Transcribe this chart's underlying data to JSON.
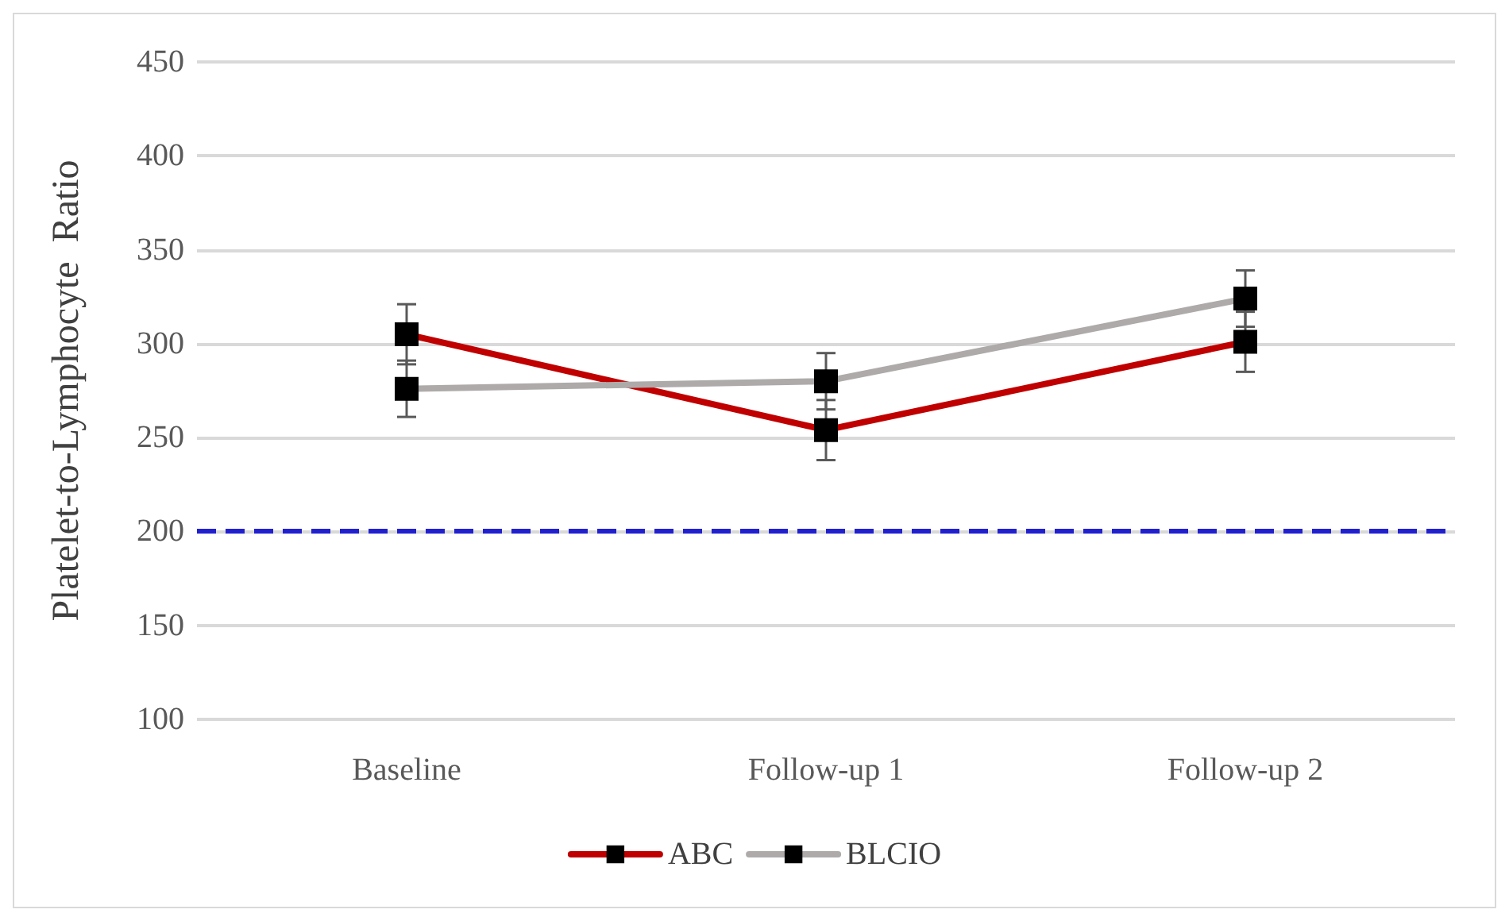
{
  "chart_data": {
    "type": "line",
    "ylabel": "Platelet-to-Lymphocyte  Ratio",
    "categories": [
      "Baseline",
      "Follow-up 1",
      "Follow-up 2"
    ],
    "series": [
      {
        "name": "ABC",
        "color": "#c00000",
        "values": [
          305,
          254,
          301
        ],
        "errors": [
          16,
          16,
          16
        ]
      },
      {
        "name": "BLCIO",
        "color": "#aeaaaa",
        "values": [
          276,
          280,
          324
        ],
        "errors": [
          15,
          15,
          15
        ]
      }
    ],
    "ylim": [
      100,
      450
    ],
    "yticks": [
      100,
      150,
      200,
      250,
      300,
      350,
      400,
      450
    ],
    "grid": "y",
    "legend": "bottom",
    "marker": "square",
    "line_style": "solid",
    "ref_lines": [
      {
        "axis": "y",
        "value": 200,
        "color": "#2020d0",
        "line_style": "dashed"
      }
    ]
  }
}
